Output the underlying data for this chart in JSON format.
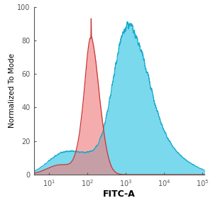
{
  "xlabel": "FITC-A",
  "ylabel": "Normalized To Mode",
  "ylim": [
    0,
    100
  ],
  "yticks": [
    0,
    20,
    40,
    60,
    80,
    100
  ],
  "blue_fill": "#4DCDE8",
  "red_fill": "#F08080",
  "blue_edge": "#1AABCC",
  "red_edge": "#CC3333",
  "xlabel_fontsize": 9,
  "ylabel_fontsize": 7.5,
  "tick_fontsize": 7,
  "red_mean_log": 2.12,
  "red_std_log": 0.22,
  "blue_mean_log": 3.05,
  "blue_std_log1": 0.38,
  "blue_std_log2": 0.55
}
